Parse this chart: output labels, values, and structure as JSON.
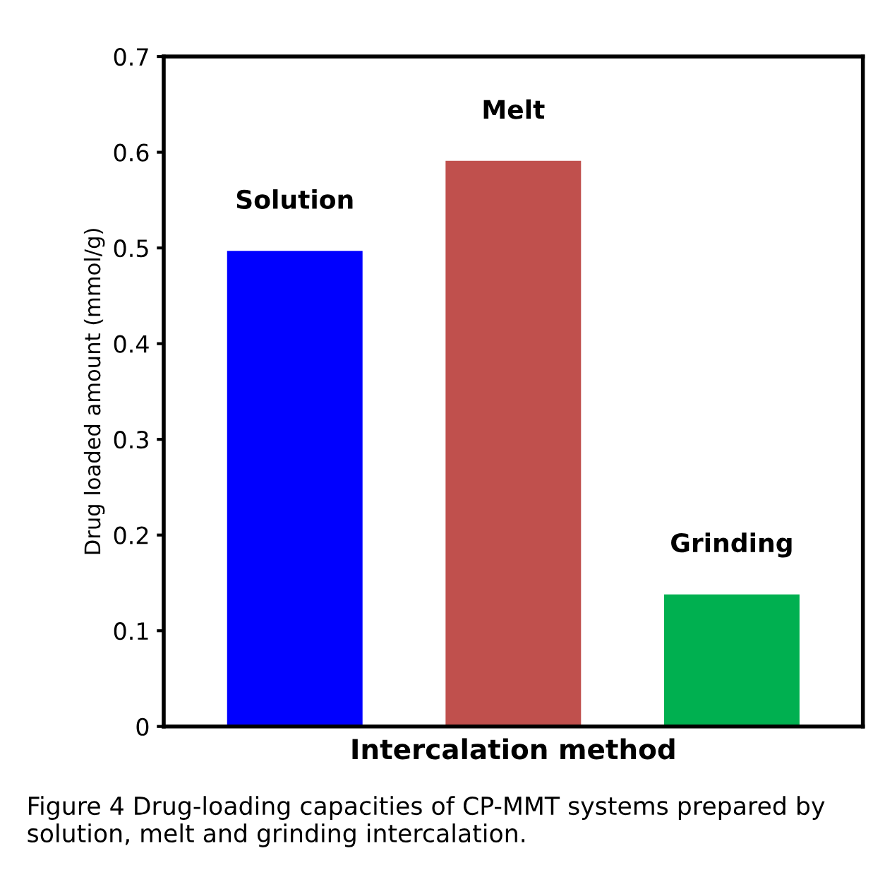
{
  "chart_data": {
    "type": "bar",
    "ylabel": "Drug loaded amount (mmol/g)",
    "xlabel": "Intercalation method",
    "categories": [
      "Solution",
      "Melt",
      "Grinding"
    ],
    "values": [
      0.497,
      0.591,
      0.138
    ],
    "colors": [
      "#0000ff",
      "#c0504d",
      "#00b050"
    ],
    "ylim": [
      0,
      0.7
    ],
    "yticks": [
      0,
      0.1,
      0.2,
      0.3,
      0.4,
      0.5,
      0.6,
      0.7
    ],
    "grid": false,
    "annotations": [
      "Figure 4 Drug-loading capacities of CP-MMT systems prepared by solution, melt and grinding intercalation."
    ]
  }
}
